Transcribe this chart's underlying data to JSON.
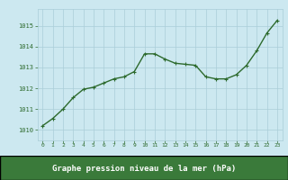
{
  "x": [
    0,
    1,
    2,
    3,
    4,
    5,
    6,
    7,
    8,
    9,
    10,
    11,
    12,
    13,
    14,
    15,
    16,
    17,
    18,
    19,
    20,
    21,
    22,
    23
  ],
  "y": [
    1010.2,
    1010.55,
    1011.0,
    1011.55,
    1011.95,
    1012.05,
    1012.25,
    1012.45,
    1012.55,
    1012.8,
    1013.65,
    1013.65,
    1013.4,
    1013.2,
    1013.15,
    1013.1,
    1012.55,
    1012.45,
    1012.45,
    1012.65,
    1013.1,
    1013.8,
    1014.65,
    1015.25
  ],
  "line_color": "#2d6a2d",
  "marker": "+",
  "marker_color": "#2d6a2d",
  "bg_color": "#cce8f0",
  "grid_color": "#aacdd8",
  "xlabel": "Graphe pression niveau de la mer (hPa)",
  "xlabel_color": "#1a4a1a",
  "xlabel_bg": "#3a7a3a",
  "tick_label_color": "#2d6a2d",
  "ylim": [
    1009.5,
    1015.8
  ],
  "xlim": [
    -0.5,
    23.5
  ],
  "yticks": [
    1010,
    1011,
    1012,
    1013,
    1014,
    1015
  ],
  "xticks": [
    0,
    1,
    2,
    3,
    4,
    5,
    6,
    7,
    8,
    9,
    10,
    11,
    12,
    13,
    14,
    15,
    16,
    17,
    18,
    19,
    20,
    21,
    22,
    23
  ],
  "linewidth": 1.0,
  "markersize": 3.5
}
